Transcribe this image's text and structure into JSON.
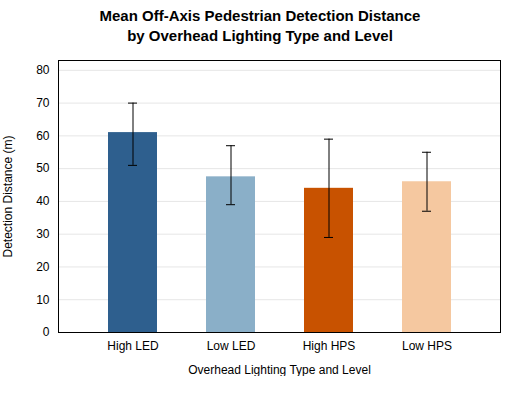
{
  "chart_data": {
    "type": "bar",
    "title": "Mean Off-Axis Pedestrian Detection Distance",
    "subtitle": "by Overhead Lighting Type and Level",
    "categories": [
      "High LED",
      "Low LED",
      "High HPS",
      "Low HPS"
    ],
    "values": [
      61.0,
      47.5,
      44.0,
      46.0
    ],
    "yerr_upper": [
      9.0,
      9.5,
      15.0,
      9.0
    ],
    "yerr_lower": [
      10.0,
      8.5,
      15.0,
      9.0
    ],
    "colors": [
      "#2E5F8E",
      "#8AAFC8",
      "#C85200",
      "#F5C8A0"
    ],
    "xlabel": "Overhead Lighting Type and Level",
    "ylabel": "Detection Distance (m)",
    "ylim": [
      0,
      83
    ],
    "yticks": [
      0,
      10,
      20,
      30,
      40,
      50,
      60,
      70,
      80
    ],
    "grid": true
  }
}
